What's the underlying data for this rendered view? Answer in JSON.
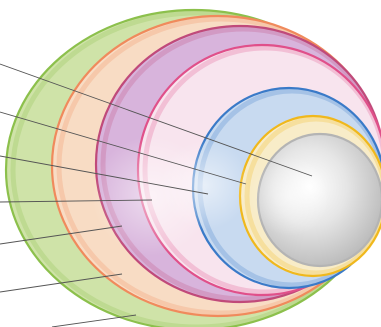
{
  "diagram": {
    "layers": [
      {
        "id": "layer-1",
        "fill": "#cfe3a8",
        "edge": "#8cc04c"
      },
      {
        "id": "layer-2",
        "fill": "#f8dcc4",
        "edge": "#f08a5c"
      },
      {
        "id": "layer-3",
        "fill": "#d8b4dc",
        "edge": "#c04a7a"
      },
      {
        "id": "layer-4",
        "fill": "#f8e4ee",
        "edge": "#e0508a"
      },
      {
        "id": "layer-5",
        "fill": "#c8daf0",
        "edge": "#3a7ac8"
      },
      {
        "id": "layer-6",
        "fill": "#f8ecc8",
        "edge": "#f0b81c"
      },
      {
        "id": "layer-7",
        "fill": "#ececec",
        "edge": "#b4b4b4"
      }
    ],
    "leader_line_color": "#555555"
  }
}
